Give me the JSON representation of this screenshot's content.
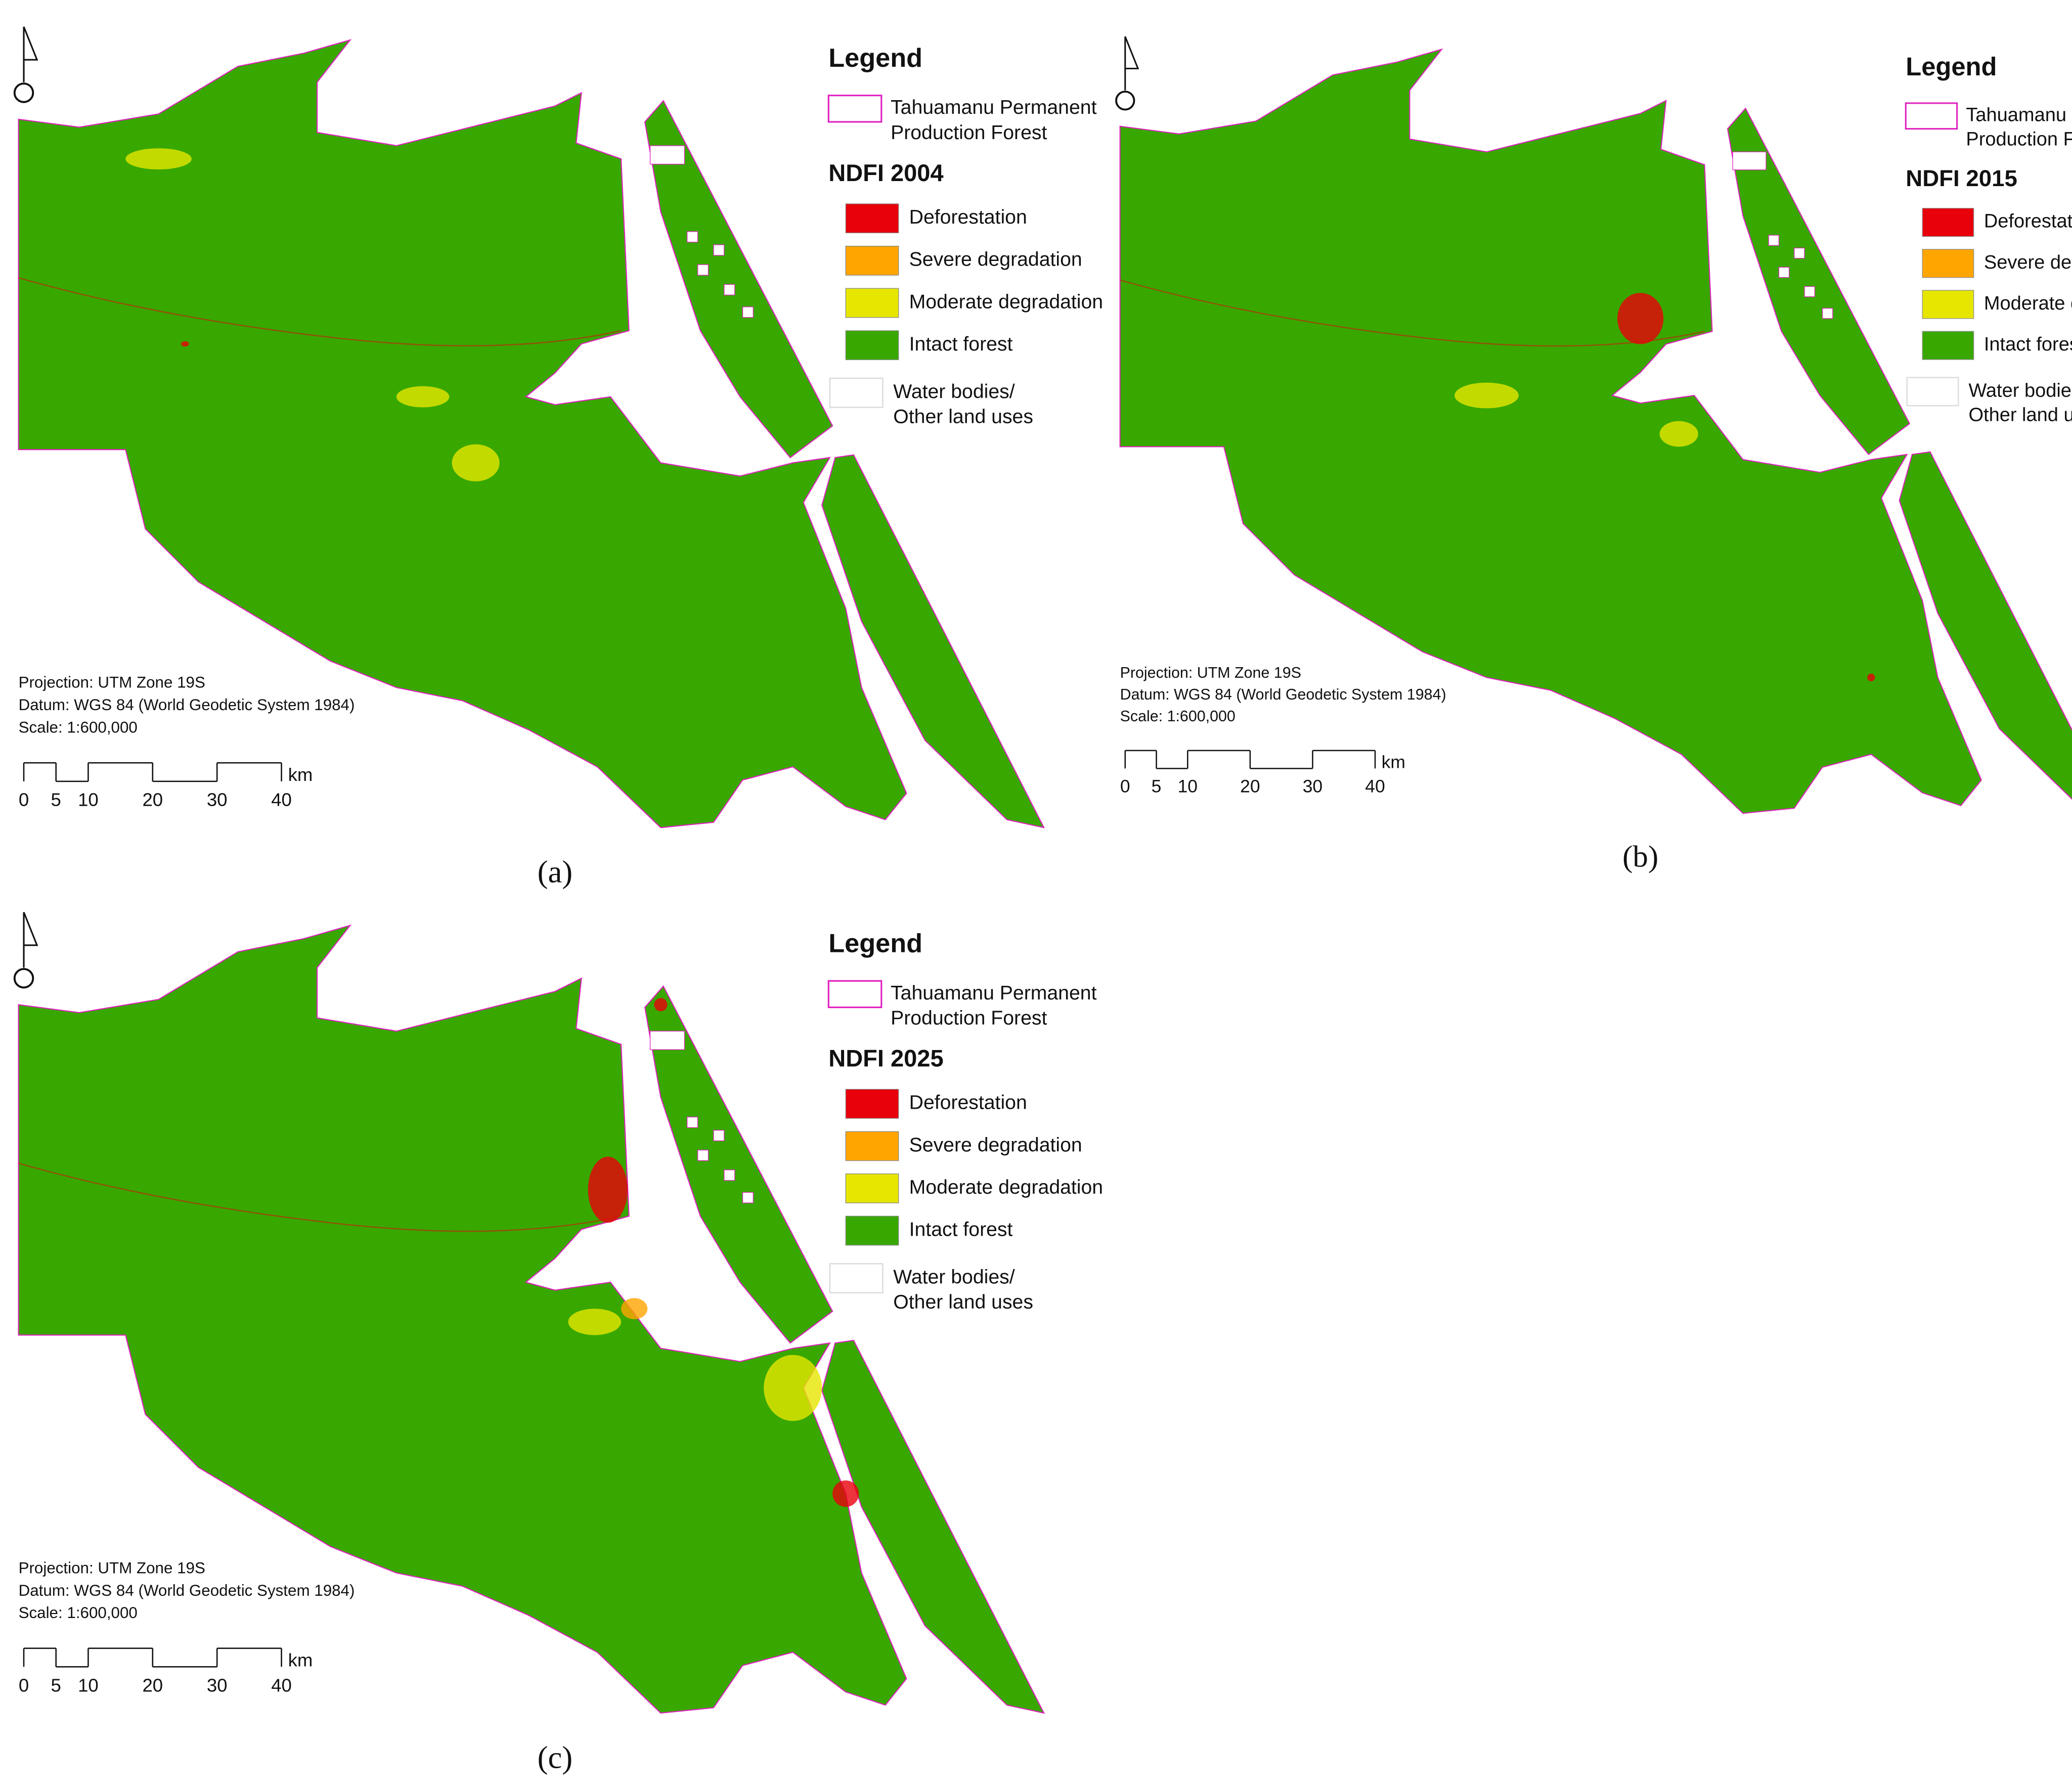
{
  "panels": [
    {
      "caption": "(a)",
      "legend": {
        "title": "Legend",
        "boundary": [
          "Tahuamanu Permanent",
          "Production Forest"
        ],
        "boundary_color": "#e020c0",
        "index_title": "NDFI 2004",
        "classes": [
          {
            "label": "Deforestation",
            "color": "#e8000b"
          },
          {
            "label": "Severe degradation",
            "color": "#ffa500"
          },
          {
            "label": "Moderate degradation",
            "color": "#e6e600"
          },
          {
            "label": "Intact forest",
            "color": "#38a800"
          }
        ],
        "other": [
          "Water bodies/",
          "Other land uses"
        ]
      },
      "notes": [
        "Projection: UTM Zone 19S",
        "Datum: WGS 84 (World Geodetic System 1984)",
        "Scale: 1:600,000"
      ],
      "scale_bar": {
        "ticks": [
          0,
          5,
          10,
          20,
          30,
          40
        ],
        "unit": "km"
      }
    },
    {
      "caption": "(b)",
      "legend": {
        "title": "Legend",
        "boundary": [
          "Tahuamanu Permanent",
          "Production Forest"
        ],
        "boundary_color": "#e020c0",
        "index_title": "NDFI 2015",
        "classes": [
          {
            "label": "Deforestation",
            "color": "#e8000b"
          },
          {
            "label": "Severe degradation",
            "color": "#ffa500"
          },
          {
            "label": "Moderate degradation",
            "color": "#e6e600"
          },
          {
            "label": "Intact forest",
            "color": "#38a800"
          }
        ],
        "other": [
          "Water bodies/",
          "Other land uses"
        ]
      },
      "notes": [
        "Projection: UTM Zone 19S",
        "Datum: WGS 84 (World Geodetic System 1984)",
        "Scale: 1:600,000"
      ],
      "scale_bar": {
        "ticks": [
          0,
          5,
          10,
          20,
          30,
          40
        ],
        "unit": "km"
      }
    },
    {
      "caption": "(c)",
      "legend": {
        "title": "Legend",
        "boundary": [
          "Tahuamanu Permanent",
          "Production Forest"
        ],
        "boundary_color": "#e020c0",
        "index_title": "NDFI 2025",
        "classes": [
          {
            "label": "Deforestation",
            "color": "#e8000b"
          },
          {
            "label": "Severe degradation",
            "color": "#ffa500"
          },
          {
            "label": "Moderate degradation",
            "color": "#e6e600"
          },
          {
            "label": "Intact forest",
            "color": "#38a800"
          }
        ],
        "other": [
          "Water bodies/",
          "Other land uses"
        ]
      },
      "notes": [
        "Projection: UTM Zone 19S",
        "Datum: WGS 84 (World Geodetic System 1984)",
        "Scale: 1:600,000"
      ],
      "scale_bar": {
        "ticks": [
          0,
          5,
          10,
          20,
          30,
          40
        ],
        "unit": "km"
      }
    }
  ]
}
